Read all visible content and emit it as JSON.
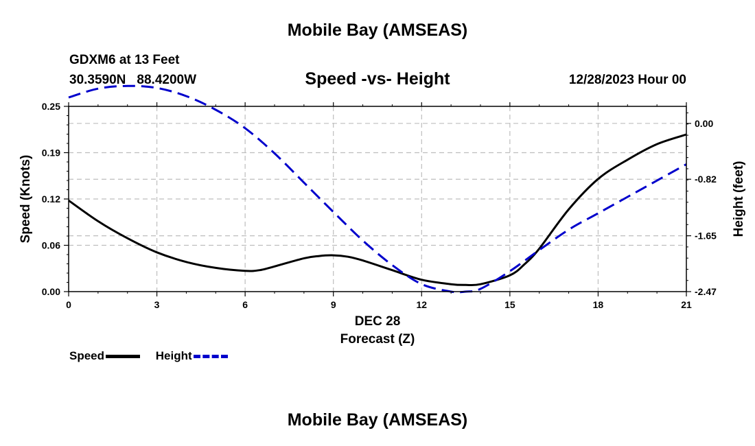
{
  "header": {
    "title": "Mobile Bay (AMSEAS)",
    "station": "GDXM6 at 13 Feet",
    "lat": "30.3590N",
    "lon": "88.4200W",
    "subtitle": "Speed -vs- Height",
    "date": "12/28/2023 Hour 00",
    "bottom_title": "Mobile Bay (AMSEAS)"
  },
  "legend": {
    "speed_label": "Speed",
    "height_label": "Height"
  },
  "chart_data": {
    "type": "line",
    "title": "Speed -vs- Height",
    "xlabel": "Forecast (Z)",
    "xlabel_date": "DEC 28",
    "ylabel": "Speed (Knots)",
    "y2label": "Height (feet)",
    "xlim": [
      0,
      21
    ],
    "ylim": [
      0,
      0.25
    ],
    "y2lim": [
      -2.47,
      0.25
    ],
    "x_ticks": [
      "0",
      "3",
      "6",
      "9",
      "12",
      "15",
      "18",
      "21"
    ],
    "x_tick_values": [
      0,
      3,
      6,
      9,
      12,
      15,
      18,
      21
    ],
    "y_ticks": [
      "0.00",
      "0.06",
      "0.12",
      "0.19",
      "0.25"
    ],
    "y_tick_values": [
      0.0,
      0.0625,
      0.125,
      0.1875,
      0.25
    ],
    "y2_ticks": [
      "0.00",
      "-0.82",
      "-1.65",
      "-2.47"
    ],
    "y2_tick_values": [
      0.0,
      -0.82,
      -1.65,
      -2.47
    ],
    "grid": true,
    "series": [
      {
        "name": "Speed",
        "axis": "left",
        "color": "#000000",
        "style": "solid",
        "x": [
          0,
          1,
          2,
          3,
          4,
          5,
          6,
          6.5,
          7,
          8,
          8.5,
          9,
          9.5,
          10,
          11,
          12,
          13,
          13.5,
          14,
          15,
          15.5,
          16,
          17,
          18,
          19,
          20,
          21
        ],
        "values": [
          0.123,
          0.095,
          0.072,
          0.053,
          0.04,
          0.032,
          0.028,
          0.029,
          0.034,
          0.045,
          0.048,
          0.049,
          0.047,
          0.042,
          0.029,
          0.016,
          0.01,
          0.009,
          0.01,
          0.022,
          0.037,
          0.058,
          0.111,
          0.152,
          0.178,
          0.199,
          0.212
        ]
      },
      {
        "name": "Height",
        "axis": "right",
        "color": "#0000cc",
        "style": "dashed",
        "x": [
          0,
          1,
          2,
          3,
          4,
          5,
          6,
          7,
          8,
          9,
          10,
          11,
          12,
          13,
          13.5,
          14,
          15,
          16,
          17,
          18,
          19,
          20,
          21
        ],
        "values": [
          0.38,
          0.51,
          0.55,
          0.52,
          0.4,
          0.2,
          -0.07,
          -0.44,
          -0.87,
          -1.3,
          -1.72,
          -2.08,
          -2.36,
          -2.47,
          -2.47,
          -2.43,
          -2.17,
          -1.86,
          -1.56,
          -1.32,
          -1.08,
          -0.84,
          -0.6
        ]
      }
    ]
  }
}
